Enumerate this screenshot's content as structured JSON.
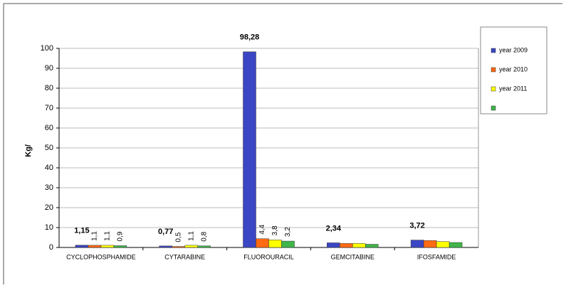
{
  "chart_data": {
    "type": "bar",
    "y_label": "Kg/",
    "categories": [
      "CYCLOPHOSPHAMIDE",
      "CYTARABINE",
      "FLUOROURACIL",
      "GEMCITABINE",
      "IFOSFAMIDE"
    ],
    "series": [
      {
        "name": "year 2009",
        "color": "#3b46c4",
        "values": [
          1.15,
          0.77,
          98.28,
          2.34,
          3.72
        ],
        "value_labels": [
          "1,15",
          "0,77",
          "98,28",
          "2,34",
          "3,72"
        ]
      },
      {
        "name": "year 2010",
        "color": "#ff6a13",
        "values": [
          1.1,
          0.5,
          4.4,
          2.0,
          3.5
        ],
        "value_labels": [
          "1,1",
          "0,5",
          "4,4",
          null,
          null
        ]
      },
      {
        "name": "year 2011",
        "color": "#ffff00",
        "values": [
          1.1,
          1.1,
          3.8,
          2.0,
          3.0
        ],
        "value_labels": [
          "1,1",
          "1,1",
          "3,8",
          null,
          null
        ]
      },
      {
        "name": null,
        "color": "#3fb54a",
        "values": [
          0.9,
          0.8,
          3.2,
          1.6,
          2.5
        ],
        "value_labels": [
          "0,9",
          "0,8",
          "3,2",
          null,
          null
        ]
      }
    ],
    "ylim": [
      0,
      100
    ],
    "yticks": [
      0,
      10,
      20,
      30,
      40,
      50,
      60,
      70,
      80,
      90,
      100
    ],
    "grid": true,
    "legend": "right"
  }
}
